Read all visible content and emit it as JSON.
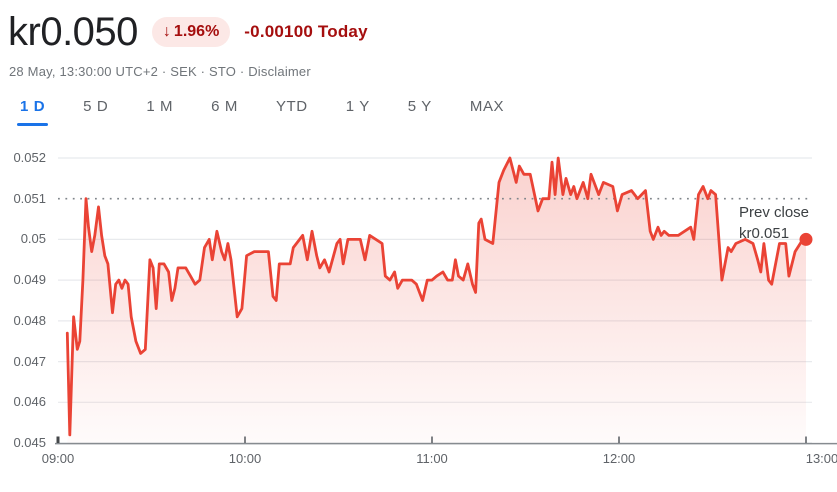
{
  "header": {
    "price": "kr0.050",
    "change_badge": {
      "arrow": "↓",
      "percent": "1.96%"
    },
    "change_text": "-0.00100 Today",
    "meta_text": "28 May, 13:30:00 UTC+2 · SEK · STO ·",
    "disclaimer_label": "Disclaimer"
  },
  "tabs": [
    {
      "label": "1 D",
      "selected": true
    },
    {
      "label": "5 D",
      "selected": false
    },
    {
      "label": "1 M",
      "selected": false
    },
    {
      "label": "6 M",
      "selected": false
    },
    {
      "label": "YTD",
      "selected": false
    },
    {
      "label": "1 Y",
      "selected": false
    },
    {
      "label": "5 Y",
      "selected": false
    },
    {
      "label": "MAX",
      "selected": false
    }
  ],
  "colors": {
    "line_red": "#ea4335",
    "negative_text_red": "#a50e0e",
    "badge_bg_pink": "#fce8e6",
    "selected_tab_blue": "#1a73e8",
    "grid_gray": "#e8eaed",
    "dotted_line_gray": "#80868b",
    "axis_gray": "#868b90",
    "label_gray": "#5f6368"
  },
  "chart_data": {
    "type": "area",
    "currency": "SEK",
    "grid": true,
    "legend": false,
    "ylim": [
      0.045,
      0.052
    ],
    "xlim_minutes": [
      0,
      240
    ],
    "x_ticks": [
      {
        "label": "09:00",
        "minute": 0
      },
      {
        "label": "10:00",
        "minute": 60
      },
      {
        "label": "11:00",
        "minute": 120
      },
      {
        "label": "12:00",
        "minute": 180
      },
      {
        "label": "13:00",
        "minute": 240
      }
    ],
    "y_ticks": [
      {
        "value": 0.052,
        "label": "0.052"
      },
      {
        "value": 0.051,
        "label": "0.051"
      },
      {
        "value": 0.05,
        "label": "0.05"
      },
      {
        "value": 0.049,
        "label": "0.049"
      },
      {
        "value": 0.048,
        "label": "0.048"
      },
      {
        "value": 0.047,
        "label": "0.047"
      },
      {
        "value": 0.046,
        "label": "0.046"
      },
      {
        "value": 0.045,
        "label": "0.045"
      }
    ],
    "prev_close": {
      "value": 0.051,
      "label_line1": "Prev close",
      "label_line2": "kr0.051"
    },
    "last_point": {
      "minute": 240,
      "value": 0.05
    },
    "series": [
      {
        "name": "price",
        "points": [
          [
            3,
            0.0477
          ],
          [
            3.8,
            0.0452
          ],
          [
            5,
            0.0481
          ],
          [
            6.2,
            0.0473
          ],
          [
            7,
            0.0475
          ],
          [
            8,
            0.049
          ],
          [
            9,
            0.051
          ],
          [
            9.8,
            0.0503
          ],
          [
            10.8,
            0.0497
          ],
          [
            11.8,
            0.0501
          ],
          [
            13,
            0.0508
          ],
          [
            14,
            0.0501
          ],
          [
            15,
            0.0496
          ],
          [
            16,
            0.0494
          ],
          [
            17.5,
            0.0482
          ],
          [
            18.5,
            0.0489
          ],
          [
            19.5,
            0.049
          ],
          [
            20.5,
            0.0488
          ],
          [
            21.5,
            0.049
          ],
          [
            22.5,
            0.0489
          ],
          [
            23.5,
            0.0481
          ],
          [
            25,
            0.0475
          ],
          [
            26.5,
            0.0472
          ],
          [
            28,
            0.0473
          ],
          [
            29.5,
            0.0495
          ],
          [
            30.5,
            0.0493
          ],
          [
            31.5,
            0.0483
          ],
          [
            32.5,
            0.0494
          ],
          [
            34,
            0.0494
          ],
          [
            35.5,
            0.0492
          ],
          [
            36.5,
            0.0485
          ],
          [
            37.5,
            0.0488
          ],
          [
            38.5,
            0.0493
          ],
          [
            41,
            0.0493
          ],
          [
            42.5,
            0.0491
          ],
          [
            44,
            0.0489
          ],
          [
            45.5,
            0.049
          ],
          [
            47,
            0.0498
          ],
          [
            48.5,
            0.05
          ],
          [
            49.5,
            0.0495
          ],
          [
            51,
            0.0502
          ],
          [
            52.5,
            0.0497
          ],
          [
            53.5,
            0.0495
          ],
          [
            54.5,
            0.0499
          ],
          [
            55.5,
            0.0495
          ],
          [
            57.5,
            0.0481
          ],
          [
            59,
            0.0483
          ],
          [
            60.5,
            0.0496
          ],
          [
            63,
            0.0497
          ],
          [
            67.5,
            0.0497
          ],
          [
            69,
            0.0486
          ],
          [
            70,
            0.0485
          ],
          [
            71,
            0.0494
          ],
          [
            74.5,
            0.0494
          ],
          [
            75.5,
            0.0498
          ],
          [
            78.5,
            0.0501
          ],
          [
            80,
            0.0495
          ],
          [
            81.5,
            0.0502
          ],
          [
            83,
            0.0496
          ],
          [
            84,
            0.0493
          ],
          [
            85.5,
            0.0495
          ],
          [
            87,
            0.0492
          ],
          [
            89.5,
            0.0499
          ],
          [
            90.5,
            0.05
          ],
          [
            91.5,
            0.0494
          ],
          [
            93,
            0.05
          ],
          [
            97,
            0.05
          ],
          [
            98.5,
            0.0495
          ],
          [
            100,
            0.0501
          ],
          [
            102,
            0.05
          ],
          [
            104,
            0.0499
          ],
          [
            105,
            0.0491
          ],
          [
            106.5,
            0.049
          ],
          [
            108,
            0.0492
          ],
          [
            109,
            0.0488
          ],
          [
            110.5,
            0.049
          ],
          [
            113.5,
            0.049
          ],
          [
            115,
            0.0489
          ],
          [
            117,
            0.0485
          ],
          [
            118.5,
            0.049
          ],
          [
            120,
            0.049
          ],
          [
            121.5,
            0.0491
          ],
          [
            123.5,
            0.0492
          ],
          [
            125,
            0.049
          ],
          [
            126.5,
            0.049
          ],
          [
            127.5,
            0.0495
          ],
          [
            128.5,
            0.0491
          ],
          [
            130,
            0.049
          ],
          [
            131.5,
            0.0494
          ],
          [
            133,
            0.0489
          ],
          [
            134,
            0.0487
          ],
          [
            135,
            0.0504
          ],
          [
            135.8,
            0.0505
          ],
          [
            137,
            0.05
          ],
          [
            139.5,
            0.0499
          ],
          [
            141.5,
            0.0514
          ],
          [
            143,
            0.0517
          ],
          [
            145,
            0.052
          ],
          [
            147,
            0.0514
          ],
          [
            148,
            0.0518
          ],
          [
            149.5,
            0.0516
          ],
          [
            151.5,
            0.0516
          ],
          [
            154,
            0.0507
          ],
          [
            155.5,
            0.051
          ],
          [
            157.5,
            0.051
          ],
          [
            158.5,
            0.0519
          ],
          [
            159.5,
            0.0511
          ],
          [
            160.5,
            0.052
          ],
          [
            162,
            0.0511
          ],
          [
            163,
            0.0515
          ],
          [
            164.5,
            0.0511
          ],
          [
            165.5,
            0.0513
          ],
          [
            166.5,
            0.051
          ],
          [
            168.5,
            0.0514
          ],
          [
            170,
            0.051
          ],
          [
            171,
            0.0516
          ],
          [
            173.5,
            0.0511
          ],
          [
            175,
            0.0514
          ],
          [
            178,
            0.0513
          ],
          [
            179.5,
            0.0507
          ],
          [
            181,
            0.0511
          ],
          [
            184,
            0.0512
          ],
          [
            186,
            0.051
          ],
          [
            188.5,
            0.0512
          ],
          [
            190,
            0.0502
          ],
          [
            191,
            0.05
          ],
          [
            192.5,
            0.0503
          ],
          [
            193.5,
            0.0501
          ],
          [
            194.5,
            0.0502
          ],
          [
            196,
            0.0501
          ],
          [
            199,
            0.0501
          ],
          [
            203,
            0.0503
          ],
          [
            204,
            0.05
          ],
          [
            205.5,
            0.0511
          ],
          [
            207,
            0.0513
          ],
          [
            208.5,
            0.051
          ],
          [
            209.5,
            0.0512
          ],
          [
            211,
            0.0511
          ],
          [
            213,
            0.049
          ],
          [
            215,
            0.0498
          ],
          [
            216,
            0.0497
          ],
          [
            217.5,
            0.0499
          ],
          [
            220.5,
            0.05
          ],
          [
            223,
            0.0499
          ],
          [
            224.5,
            0.0495
          ],
          [
            225.5,
            0.0492
          ],
          [
            226.5,
            0.0499
          ],
          [
            228,
            0.049
          ],
          [
            229,
            0.0489
          ],
          [
            231.5,
            0.0499
          ],
          [
            233.5,
            0.0499
          ],
          [
            234.5,
            0.0491
          ],
          [
            236.5,
            0.0497
          ],
          [
            239,
            0.05
          ],
          [
            240,
            0.05
          ]
        ]
      }
    ]
  }
}
